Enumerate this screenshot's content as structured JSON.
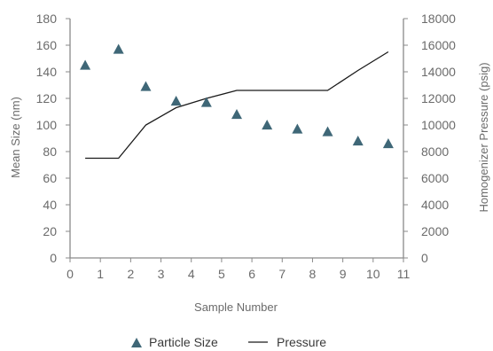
{
  "chart_data": {
    "type": "scatter",
    "xlabel": "Sample Number",
    "ylabel": "Mean Size (nm)",
    "y2label": "Homogenizer Pressure (psig)",
    "xlim": [
      0,
      11
    ],
    "ylim": [
      0,
      180
    ],
    "y2lim": [
      0,
      18000
    ],
    "x_ticks": [
      "0",
      "1",
      "2",
      "3",
      "4",
      "5",
      "6",
      "7",
      "8",
      "9",
      "10",
      "11"
    ],
    "y_ticks": [
      "0",
      "20",
      "40",
      "60",
      "80",
      "100",
      "120",
      "140",
      "160",
      "180"
    ],
    "y2_ticks": [
      "0",
      "2000",
      "4000",
      "6000",
      "8000",
      "10000",
      "12000",
      "14000",
      "16000",
      "18000"
    ],
    "grid": false,
    "legend_position": "bottom",
    "series": [
      {
        "name": "Particle Size",
        "kind": "scatter",
        "marker": "triangle",
        "axis": "left",
        "color": "#3f6777",
        "x": [
          0.5,
          1.6,
          2.5,
          3.5,
          4.5,
          5.5,
          6.5,
          7.5,
          8.5,
          9.5,
          10.5
        ],
        "y": [
          145,
          157,
          129,
          118,
          117,
          108,
          100,
          97,
          95,
          88,
          86
        ]
      },
      {
        "name": "Pressure",
        "kind": "line",
        "axis": "right",
        "color": "#1a1a1a",
        "x": [
          0.5,
          1.6,
          2.5,
          3.5,
          4.5,
          5.5,
          6.5,
          7.5,
          8.5,
          9.5,
          10.5
        ],
        "y": [
          7500,
          7500,
          10000,
          11300,
          12000,
          12600,
          12600,
          12600,
          12600,
          14100,
          15500
        ]
      }
    ]
  },
  "legend": {
    "particle_label": "Particle Size",
    "pressure_label": "Pressure"
  }
}
